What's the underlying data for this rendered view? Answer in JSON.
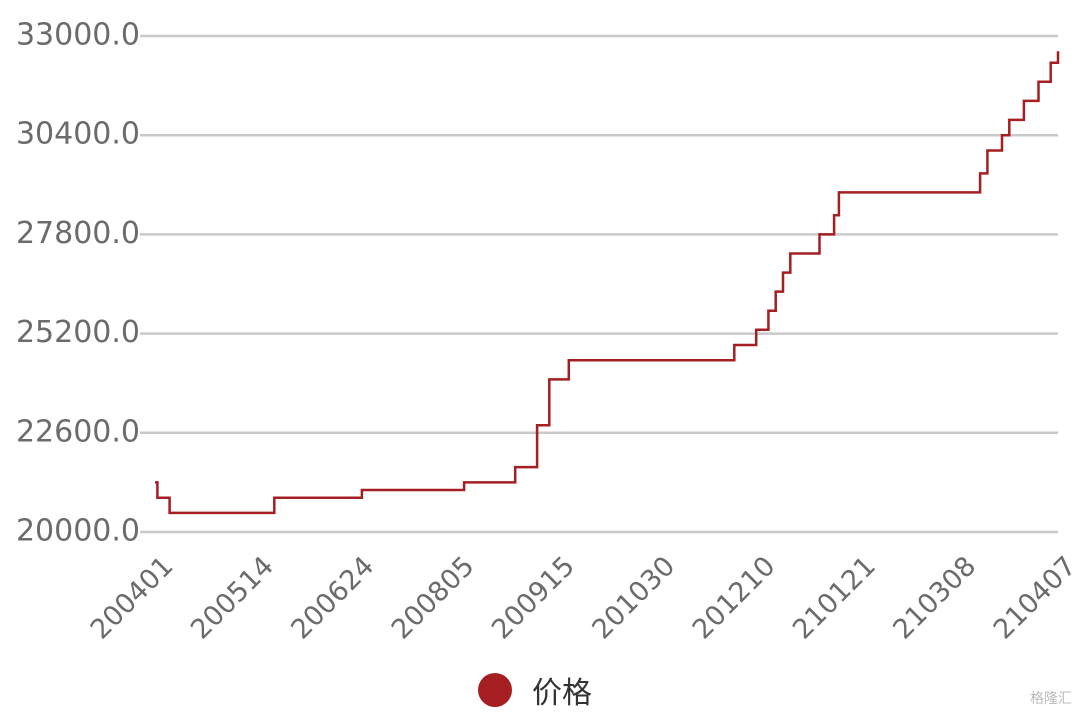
{
  "chart_data": {
    "type": "line",
    "title": "",
    "xlabel": "",
    "ylabel": "",
    "ylim": [
      20000,
      33000
    ],
    "yticks": [
      "33000.0",
      "30400.0",
      "27800.0",
      "25200.0",
      "22600.0",
      "20000.0"
    ],
    "yticks_values": [
      33000,
      30400,
      27800,
      25200,
      22600,
      20000
    ],
    "xtick_labels": [
      "200401",
      "200514",
      "200624",
      "200805",
      "200915",
      "201030",
      "201210",
      "210121",
      "210308",
      "210407"
    ],
    "grid": true,
    "legend_position": "bottom-center",
    "series": [
      {
        "name": "价格",
        "color": "#a51e22",
        "step": true,
        "points": [
          [
            "200401",
            21300
          ],
          [
            "200402",
            20900
          ],
          [
            "200407",
            20500
          ],
          [
            "200514",
            20500
          ],
          [
            "200520",
            20900
          ],
          [
            "200624",
            20900
          ],
          [
            "200625",
            21100
          ],
          [
            "200805",
            21100
          ],
          [
            "200806",
            21300
          ],
          [
            "200824",
            21300
          ],
          [
            "200827",
            21700
          ],
          [
            "200903",
            21700
          ],
          [
            "200905",
            22800
          ],
          [
            "200908",
            22800
          ],
          [
            "200910",
            24000
          ],
          [
            "200915",
            24000
          ],
          [
            "200918",
            24500
          ],
          [
            "201030",
            24500
          ],
          [
            "201124",
            24500
          ],
          [
            "201125",
            24900
          ],
          [
            "201203",
            24900
          ],
          [
            "201204",
            25300
          ],
          [
            "201208",
            25300
          ],
          [
            "201209",
            25800
          ],
          [
            "201211",
            25800
          ],
          [
            "201212",
            26300
          ],
          [
            "201214",
            26300
          ],
          [
            "201215",
            26800
          ],
          [
            "201216",
            26800
          ],
          [
            "201218",
            27300
          ],
          [
            "201229",
            27300
          ],
          [
            "201230",
            27800
          ],
          [
            "210104",
            27800
          ],
          [
            "210105",
            28300
          ],
          [
            "210106",
            28300
          ],
          [
            "210107",
            28900
          ],
          [
            "210121",
            28900
          ],
          [
            "210305",
            28900
          ],
          [
            "210306",
            29400
          ],
          [
            "210308",
            29400
          ],
          [
            "210309",
            30000
          ],
          [
            "210313",
            30000
          ],
          [
            "210315",
            30400
          ],
          [
            "210317",
            30400
          ],
          [
            "210318",
            30800
          ],
          [
            "210322",
            30800
          ],
          [
            "210324",
            31300
          ],
          [
            "210329",
            31300
          ],
          [
            "210330",
            31800
          ],
          [
            "210403",
            31800
          ],
          [
            "210404",
            32300
          ],
          [
            "210406",
            32300
          ],
          [
            "210407",
            32600
          ]
        ]
      }
    ]
  },
  "legend": {
    "label": "价格",
    "color": "#a51e22"
  },
  "watermark": "格隆汇"
}
